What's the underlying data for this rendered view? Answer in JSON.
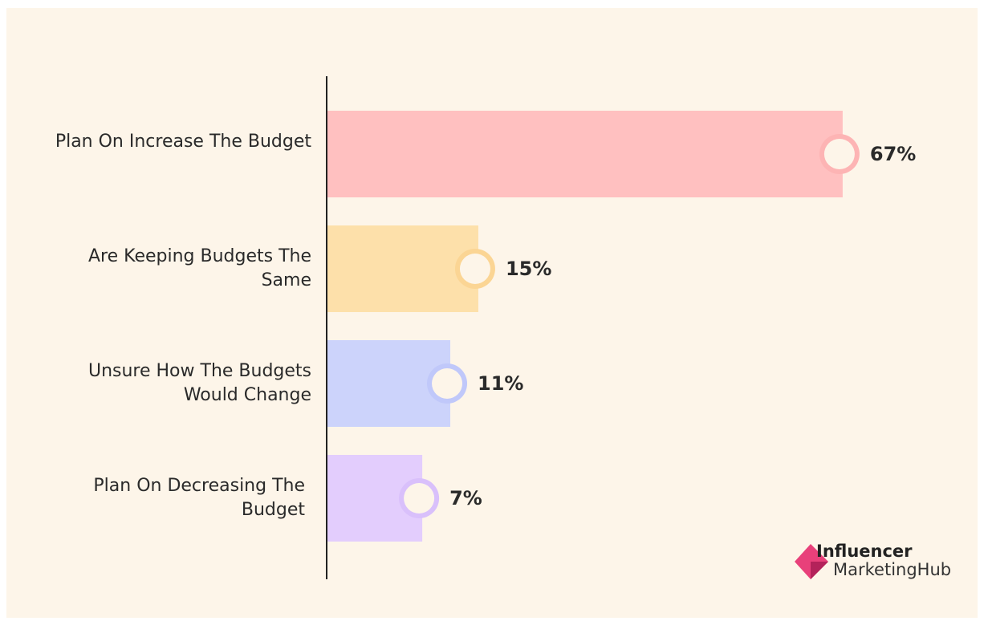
{
  "chart_data": {
    "type": "bar",
    "orientation": "horizontal",
    "categories": [
      "Plan On Increase The Budget",
      "Are Keeping Budgets The Same",
      "Unsure How The Budgets Would Change",
      "Plan On Decreasing The Budget"
    ],
    "values": [
      67,
      15,
      11,
      7
    ],
    "value_labels": [
      "67%",
      "15%",
      "11%",
      "7%"
    ],
    "colors": [
      "#ffc0c0",
      "#fde0aa",
      "#ccd3fb",
      "#e3cdfd"
    ],
    "ring_colors": [
      "#fdb4b4",
      "#fbd594",
      "#c0c8fa",
      "#d9c0fb"
    ]
  },
  "logo": {
    "line1": "Influencer",
    "line2": "MarketingHub"
  }
}
